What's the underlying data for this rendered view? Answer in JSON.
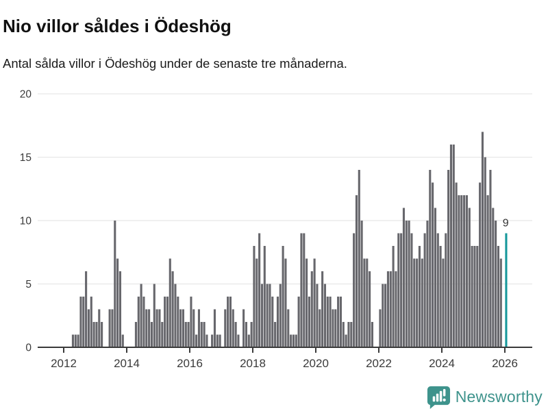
{
  "header": {
    "title": "Nio villor såldes i Ödeshög",
    "subtitle": "Antal sålda villor i Ödeshög under de senaste tre månaderna."
  },
  "branding": {
    "name": "Newsworthy",
    "icon": "newsworthy-speech-bubble-chart-icon"
  },
  "colors": {
    "bar": "#67676c",
    "highlight": "#16989b",
    "grid": "#e7e7e7",
    "axis": "#3a3a3a",
    "tick_text": "#3a3a3a",
    "annotation_text": "#333333",
    "brand": "#3e938c"
  },
  "chart_data": {
    "type": "bar",
    "title": "Nio villor såldes i Ödeshög",
    "subtitle": "Antal sålda villor i Ödeshög under de senaste tre månaderna.",
    "xlabel": "",
    "ylabel": "",
    "ylim": [
      0,
      20
    ],
    "y_ticks": [
      0,
      5,
      10,
      15,
      20
    ],
    "grid": true,
    "legend": "none",
    "start_year": 2012,
    "x_tick_labels": [
      "2012",
      "2014",
      "2016",
      "2018",
      "2020",
      "2022",
      "2024",
      "2026"
    ],
    "x_tick_month_indices": [
      0,
      24,
      48,
      72,
      96,
      120,
      144,
      168
    ],
    "monthly_values": [
      0,
      0,
      0,
      1,
      1,
      1,
      4,
      4,
      6,
      3,
      4,
      2,
      2,
      3,
      2,
      0,
      0,
      3,
      3,
      10,
      7,
      6,
      1,
      0,
      0,
      0,
      0,
      2,
      4,
      5,
      4,
      3,
      3,
      2,
      5,
      3,
      3,
      2,
      4,
      4,
      7,
      6,
      5,
      4,
      3,
      3,
      2,
      2,
      4,
      3,
      1,
      3,
      2,
      2,
      1,
      0,
      1,
      3,
      1,
      1,
      0,
      3,
      4,
      4,
      3,
      2,
      1,
      0,
      3,
      2,
      1,
      2,
      8,
      7,
      9,
      5,
      8,
      5,
      5,
      4,
      2,
      4,
      5,
      8,
      7,
      3,
      1,
      1,
      1,
      4,
      9,
      9,
      7,
      4,
      6,
      7,
      5,
      3,
      6,
      5,
      4,
      4,
      3,
      3,
      4,
      4,
      2,
      1,
      2,
      2,
      9,
      12,
      14,
      10,
      7,
      7,
      6,
      2,
      0,
      0,
      3,
      5,
      5,
      6,
      6,
      8,
      6,
      9,
      9,
      11,
      10,
      10,
      9,
      7,
      7,
      8,
      7,
      9,
      10,
      14,
      13,
      11,
      9,
      8,
      7,
      9,
      14,
      16,
      16,
      13,
      12,
      12,
      12,
      12,
      11,
      8,
      8,
      8,
      13,
      17,
      15,
      12,
      14,
      11,
      10,
      8,
      7,
      0,
      9
    ],
    "highlight": {
      "index": 168,
      "value": 9,
      "label": "9"
    }
  }
}
